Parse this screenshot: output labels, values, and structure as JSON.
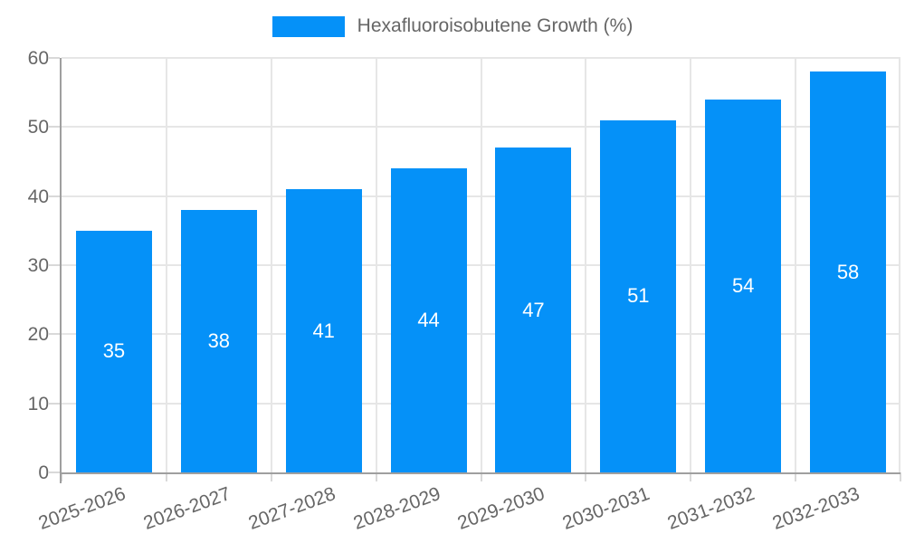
{
  "chart_data": {
    "type": "bar",
    "title": "Hexafluoroisobutene Growth (%)",
    "legend": {
      "position": "top",
      "label": "Hexafluoroisobutene Growth (%)",
      "swatch_color": "#0591f8"
    },
    "categories": [
      "2025-2026",
      "2026-2027",
      "2027-2028",
      "2028-2029",
      "2029-2030",
      "2030-2031",
      "2031-2032",
      "2032-2033"
    ],
    "series": [
      {
        "name": "Hexafluoroisobutene Growth (%)",
        "values": [
          35,
          38,
          41,
          44,
          47,
          51,
          54,
          58
        ],
        "color": "#0591f8",
        "value_label_color": "#ffffff"
      }
    ],
    "xlabel": "",
    "ylabel": "",
    "ylim": [
      0,
      60
    ],
    "yticks": [
      0,
      10,
      20,
      30,
      40,
      50,
      60
    ],
    "grid": true,
    "x_label_rotation_deg": -20,
    "value_labels": "inside-center",
    "colors": {
      "axis_text": "#666666",
      "grid": "#e6e6e6",
      "axis_line": "#9f9f9f",
      "tick": "#d9d9d9",
      "background": "#ffffff"
    }
  }
}
